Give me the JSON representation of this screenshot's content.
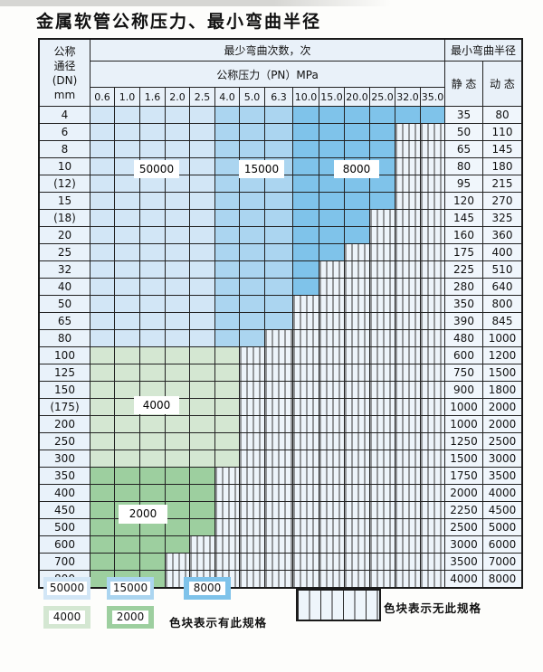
{
  "title": "金属软管公称压力、最小弯曲半径",
  "colors": {
    "c50": "#d2e6f6",
    "c15": "#abd5f0",
    "c8": "#7fc3ea",
    "c4": "#d4e7d2",
    "c2": "#9dcf9f"
  },
  "table": {
    "dn_header_lines": [
      "公称",
      "通径",
      "(DN)",
      "mm"
    ],
    "cycles_header": "最少弯曲次数，次",
    "pressure_header": "公称压力（PN）MPa",
    "radius_header": "最小弯曲半径",
    "static_header": "静 态",
    "dynamic_header": "动 态",
    "pressures": [
      "0.6",
      "1.0",
      "1.6",
      "2.0",
      "2.5",
      "4.0",
      "5.0",
      "6.3",
      "10.0",
      "15.0",
      "20.0",
      "25.0",
      "32.0",
      "35.0"
    ],
    "rows": [
      {
        "dn": "4",
        "last": 13,
        "zone": "blue",
        "static": "35",
        "dynamic": "80"
      },
      {
        "dn": "6",
        "last": 11,
        "zone": "blue",
        "static": "50",
        "dynamic": "110"
      },
      {
        "dn": "8",
        "last": 11,
        "zone": "blue",
        "static": "65",
        "dynamic": "145"
      },
      {
        "dn": "10",
        "last": 11,
        "zone": "blue",
        "static": "80",
        "dynamic": "180"
      },
      {
        "dn": "(12)",
        "last": 11,
        "zone": "blue",
        "static": "95",
        "dynamic": "215"
      },
      {
        "dn": "15",
        "last": 11,
        "zone": "blue",
        "static": "120",
        "dynamic": "270"
      },
      {
        "dn": "(18)",
        "last": 10,
        "zone": "blue",
        "static": "145",
        "dynamic": "325"
      },
      {
        "dn": "20",
        "last": 10,
        "zone": "blue",
        "static": "160",
        "dynamic": "360"
      },
      {
        "dn": "25",
        "last": 9,
        "zone": "blue",
        "static": "175",
        "dynamic": "400"
      },
      {
        "dn": "32",
        "last": 8,
        "zone": "blue",
        "static": "225",
        "dynamic": "510"
      },
      {
        "dn": "40",
        "last": 8,
        "zone": "blue",
        "static": "280",
        "dynamic": "640"
      },
      {
        "dn": "50",
        "last": 7,
        "zone": "blue",
        "static": "350",
        "dynamic": "800"
      },
      {
        "dn": "65",
        "last": 7,
        "zone": "blue",
        "static": "390",
        "dynamic": "845"
      },
      {
        "dn": "80",
        "last": 6,
        "zone": "blue",
        "static": "480",
        "dynamic": "1000"
      },
      {
        "dn": "100",
        "last": 5,
        "zone": "g4",
        "static": "600",
        "dynamic": "1200"
      },
      {
        "dn": "125",
        "last": 5,
        "zone": "g4",
        "static": "750",
        "dynamic": "1500"
      },
      {
        "dn": "150",
        "last": 5,
        "zone": "g4",
        "static": "900",
        "dynamic": "1800"
      },
      {
        "dn": "(175)",
        "last": 5,
        "zone": "g4",
        "static": "1000",
        "dynamic": "2000"
      },
      {
        "dn": "200",
        "last": 5,
        "zone": "g4",
        "static": "1000",
        "dynamic": "2000"
      },
      {
        "dn": "250",
        "last": 5,
        "zone": "g4",
        "static": "1250",
        "dynamic": "2500"
      },
      {
        "dn": "300",
        "last": 5,
        "zone": "g4",
        "static": "1500",
        "dynamic": "3000"
      },
      {
        "dn": "350",
        "last": 4,
        "zone": "g2",
        "static": "1750",
        "dynamic": "3500"
      },
      {
        "dn": "400",
        "last": 4,
        "zone": "g2",
        "static": "2000",
        "dynamic": "4000"
      },
      {
        "dn": "450",
        "last": 4,
        "zone": "g2",
        "static": "2250",
        "dynamic": "4500"
      },
      {
        "dn": "500",
        "last": 4,
        "zone": "g2",
        "static": "2500",
        "dynamic": "5000"
      },
      {
        "dn": "600",
        "last": 3,
        "zone": "g2",
        "static": "3000",
        "dynamic": "6000"
      },
      {
        "dn": "700",
        "last": 2,
        "zone": "g2",
        "static": "3500",
        "dynamic": "7000"
      },
      {
        "dn": "800",
        "last": 2,
        "zone": "g2",
        "static": "4000",
        "dynamic": "8000"
      }
    ]
  },
  "overlay_labels": {
    "l50000": "50000",
    "l15000": "15000",
    "l8000": "8000",
    "l4000": "4000",
    "l2000": "2000"
  },
  "legend": {
    "s50000": "50000",
    "s15000": "15000",
    "s8000": "8000",
    "s4000": "4000",
    "s2000": "2000",
    "has_spec_text": "色块表示有此规格",
    "no_spec_text": "色块表示无此规格"
  }
}
